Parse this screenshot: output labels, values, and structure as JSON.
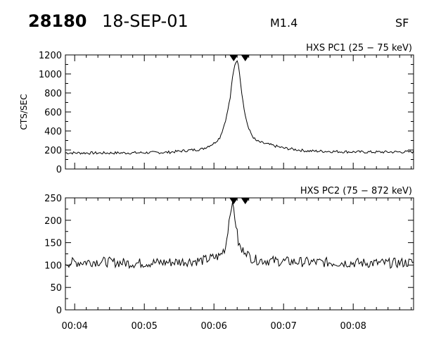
{
  "header": {
    "event_id": "28180",
    "date": "18-SEP-01",
    "goes_class": "M1.4",
    "flag": "SF"
  },
  "chart_data": [
    {
      "type": "line",
      "title": "HXS PC1 (25 − 75 keV)",
      "ylabel": "CTS/SEC",
      "xlabel": "",
      "xlim": [
        "00:03:52",
        "00:08:52"
      ],
      "ylim": [
        0,
        1200
      ],
      "yticks": [
        0,
        200,
        400,
        600,
        800,
        1000,
        1200
      ],
      "xtick_labels": [
        "00:04",
        "00:05",
        "00:06",
        "00:07",
        "00:08"
      ],
      "grid": false,
      "markers": [
        "00:06:17",
        "00:06:27"
      ],
      "series": [
        {
          "x": [
            "00:03:52",
            "00:04:20",
            "00:04:50",
            "00:05:20",
            "00:05:50",
            "00:06:00",
            "00:06:05",
            "00:06:08",
            "00:06:11",
            "00:06:14",
            "00:06:16",
            "00:06:18",
            "00:06:20",
            "00:06:22",
            "00:06:24",
            "00:06:27",
            "00:06:30",
            "00:06:33",
            "00:06:36",
            "00:06:40",
            "00:06:50",
            "00:07:00",
            "00:07:20",
            "00:07:40",
            "00:08:00",
            "00:08:20",
            "00:08:52"
          ],
          "y": [
            170,
            168,
            170,
            175,
            210,
            270,
            330,
            430,
            560,
            750,
            960,
            1100,
            1150,
            1020,
            800,
            560,
            420,
            350,
            300,
            280,
            250,
            220,
            190,
            185,
            180,
            178,
            180
          ]
        }
      ]
    },
    {
      "type": "line",
      "title": "HXS PC2 (75 − 872 keV)",
      "ylabel": "",
      "xlabel": "",
      "xlim": [
        "00:03:52",
        "00:08:52"
      ],
      "ylim": [
        0,
        250
      ],
      "yticks": [
        0,
        50,
        100,
        150,
        200,
        250
      ],
      "xtick_labels": [
        "00:04",
        "00:05",
        "00:06",
        "00:07",
        "00:08"
      ],
      "grid": false,
      "markers": [
        "00:06:17",
        "00:06:27"
      ],
      "series": [
        {
          "x": [
            "00:03:52",
            "00:04:20",
            "00:04:50",
            "00:05:20",
            "00:05:50",
            "00:06:05",
            "00:06:10",
            "00:06:13",
            "00:06:15",
            "00:06:17",
            "00:06:19",
            "00:06:21",
            "00:06:24",
            "00:06:27",
            "00:06:30",
            "00:06:35",
            "00:06:45",
            "00:07:00",
            "00:07:30",
            "00:08:00",
            "00:08:30",
            "00:08:52"
          ],
          "y": [
            105,
            108,
            104,
            106,
            110,
            120,
            140,
            200,
            235,
            225,
            190,
            150,
            130,
            135,
            120,
            112,
            110,
            108,
            106,
            105,
            104,
            106
          ]
        }
      ]
    }
  ]
}
